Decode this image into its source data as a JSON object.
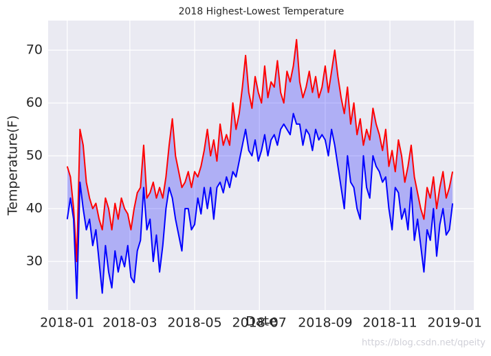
{
  "chart_data": {
    "type": "line",
    "title": "2018 Highest-Lowest Temperature",
    "xlabel": "Date",
    "ylabel": "Temperature(F)",
    "watermark": "https://blog.csdn.net/qpeity",
    "x": [
      0,
      3,
      6,
      9,
      12,
      15,
      18,
      21,
      24,
      27,
      30,
      33,
      36,
      39,
      42,
      45,
      48,
      51,
      54,
      57,
      60,
      63,
      66,
      69,
      72,
      75,
      78,
      81,
      84,
      87,
      90,
      93,
      96,
      99,
      102,
      105,
      108,
      111,
      114,
      117,
      120,
      123,
      126,
      129,
      132,
      135,
      138,
      141,
      144,
      147,
      150,
      153,
      156,
      159,
      162,
      165,
      168,
      171,
      174,
      177,
      180,
      183,
      186,
      189,
      192,
      195,
      198,
      201,
      204,
      207,
      210,
      213,
      216,
      219,
      222,
      225,
      228,
      231,
      234,
      237,
      240,
      243,
      246,
      249,
      252,
      255,
      258,
      261,
      264,
      267,
      270,
      273,
      276,
      279,
      282,
      285,
      288,
      291,
      294,
      297,
      300,
      303,
      306,
      309,
      312,
      315,
      318,
      321,
      324,
      327,
      330,
      333,
      336,
      339,
      342,
      345,
      348,
      351,
      354,
      357,
      360,
      363
    ],
    "series": [
      {
        "name": "high",
        "color": "#ff0000",
        "values": [
          48,
          46,
          40,
          30,
          55,
          52,
          45,
          42,
          40,
          41,
          38,
          36,
          42,
          40,
          36,
          41,
          38,
          42,
          40,
          39,
          36,
          40,
          43,
          44,
          52,
          42,
          43,
          45,
          42,
          44,
          42,
          46,
          52,
          57,
          50,
          47,
          44,
          45,
          47,
          44,
          47,
          46,
          48,
          51,
          55,
          50,
          53,
          49,
          56,
          52,
          54,
          52,
          60,
          55,
          58,
          63,
          69,
          62,
          59,
          65,
          62,
          60,
          67,
          61,
          64,
          63,
          68,
          62,
          60,
          66,
          64,
          67,
          72,
          64,
          61,
          63,
          66,
          62,
          65,
          61,
          63,
          67,
          62,
          66,
          70,
          65,
          61,
          58,
          63,
          56,
          60,
          54,
          57,
          52,
          55,
          53,
          59,
          56,
          54,
          51,
          55,
          48,
          51,
          47,
          53,
          50,
          45,
          48,
          52,
          46,
          43,
          40,
          38,
          44,
          42,
          46,
          40,
          44,
          47,
          42,
          44,
          47
        ]
      },
      {
        "name": "low",
        "color": "#0000ff",
        "values": [
          38,
          42,
          38,
          23,
          45,
          40,
          36,
          38,
          33,
          36,
          30,
          24,
          33,
          28,
          25,
          32,
          28,
          31,
          29,
          33,
          27,
          26,
          32,
          34,
          44,
          36,
          38,
          30,
          35,
          28,
          33,
          40,
          44,
          42,
          38,
          35,
          32,
          40,
          40,
          36,
          37,
          42,
          39,
          44,
          40,
          44,
          38,
          44,
          45,
          43,
          46,
          44,
          47,
          46,
          49,
          52,
          55,
          51,
          50,
          53,
          49,
          51,
          54,
          50,
          53,
          54,
          52,
          55,
          56,
          55,
          54,
          58,
          56,
          56,
          52,
          55,
          54,
          51,
          55,
          53,
          54,
          53,
          50,
          55,
          52,
          48,
          44,
          40,
          50,
          45,
          44,
          40,
          38,
          50,
          44,
          42,
          50,
          48,
          47,
          45,
          46,
          40,
          36,
          44,
          43,
          38,
          40,
          36,
          44,
          34,
          38,
          33,
          28,
          36,
          34,
          40,
          31,
          37,
          40,
          35,
          36,
          41
        ]
      }
    ],
    "fill": {
      "color": "#0000ff",
      "alpha": 0.25
    },
    "xlim": [
      -18,
      383
    ],
    "xticks": [
      {
        "value": 0,
        "label": "2018-01"
      },
      {
        "value": 59,
        "label": "2018-03"
      },
      {
        "value": 120,
        "label": "2018-05"
      },
      {
        "value": 181,
        "label": "2018-07"
      },
      {
        "value": 243,
        "label": "2018-09"
      },
      {
        "value": 304,
        "label": "2018-11"
      },
      {
        "value": 365,
        "label": "2019-01"
      }
    ],
    "ylim": [
      20.8,
      75.6
    ],
    "yticks": [
      30,
      40,
      50,
      60,
      70
    ],
    "grid": true,
    "background": "#eaeaf2"
  }
}
